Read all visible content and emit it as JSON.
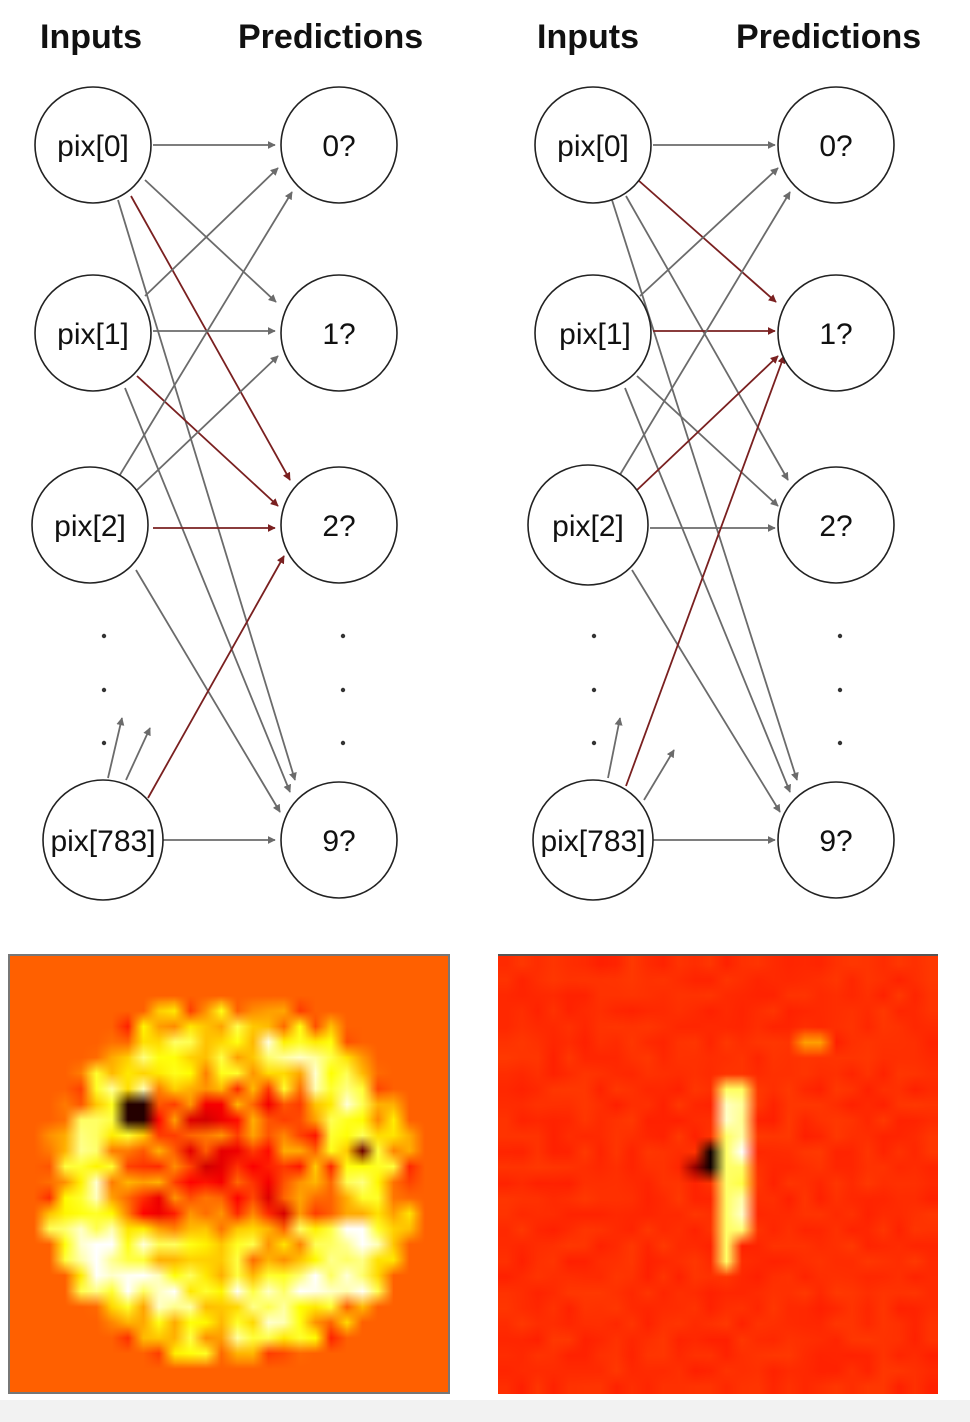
{
  "colors": {
    "background": "#ffffff",
    "neutral_edge": "#6b6b6b",
    "highlight_edge": "#7a2020",
    "node_stroke": "#222222",
    "heatmap_base_left": "#ee4a1e",
    "heatmap_base_right": "#e8262a"
  },
  "panels": [
    {
      "id": "left",
      "headers": {
        "inputs": "Inputs",
        "predictions": "Predictions"
      },
      "inputs": [
        "pix[0]",
        "pix[1]",
        "pix[2]",
        "pix[783]"
      ],
      "predictions": [
        "0?",
        "1?",
        "2?",
        "9?"
      ],
      "highlighted_target": "2?",
      "heatmap_icon": "weight-heatmap-digit-2"
    },
    {
      "id": "right",
      "headers": {
        "inputs": "Inputs",
        "predictions": "Predictions"
      },
      "inputs": [
        "pix[0]",
        "pix[1]",
        "pix[2]",
        "pix[783]"
      ],
      "predictions": [
        "0?",
        "1?",
        "2?",
        "9?"
      ],
      "highlighted_target": "1?",
      "heatmap_icon": "weight-heatmap-digit-1"
    }
  ]
}
